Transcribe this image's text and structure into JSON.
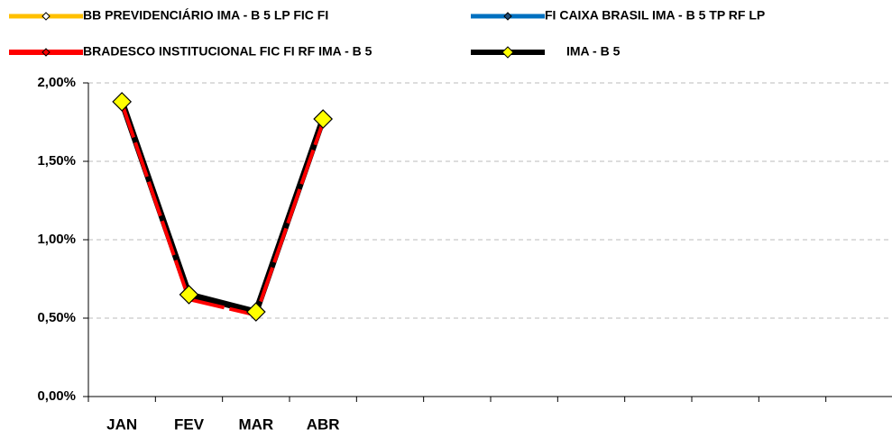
{
  "chart_data": {
    "type": "line",
    "categories": [
      "JAN",
      "FEV",
      "MAR",
      "ABR",
      null,
      null,
      null,
      null,
      null,
      null,
      null,
      null
    ],
    "series": [
      {
        "name": "BB PREVIDENCIÁRIO IMA - B 5 LP FIC FI",
        "color": "#ffc000",
        "values": [
          1.88,
          0.64,
          0.53,
          1.76,
          null,
          null,
          null,
          null,
          null,
          null,
          null,
          null
        ]
      },
      {
        "name": "FI CAIXA BRASIL IMA - B 5 TP RF LP",
        "color": "#0070c0",
        "values": [
          1.88,
          0.64,
          0.53,
          1.76,
          null,
          null,
          null,
          null,
          null,
          null,
          null,
          null
        ]
      },
      {
        "name": "BRADESCO INSTITUCIONAL FIC FI RF IMA - B 5",
        "color": "#ff0000",
        "values": [
          1.87,
          0.62,
          0.52,
          1.75,
          null,
          null,
          null,
          null,
          null,
          null,
          null,
          null
        ]
      },
      {
        "name": "IMA - B 5",
        "color": "#000000",
        "values": [
          1.88,
          0.65,
          0.54,
          1.77,
          null,
          null,
          null,
          null,
          null,
          null,
          null,
          null
        ]
      }
    ],
    "ylim": [
      0,
      2
    ],
    "yticks": [
      {
        "value": 0,
        "label": "0,00%"
      },
      {
        "value": 0.5,
        "label": "0,50%"
      },
      {
        "value": 1,
        "label": "1,00%"
      },
      {
        "value": 1.5,
        "label": "1,50%"
      },
      {
        "value": 2,
        "label": "2,00%"
      }
    ],
    "grid": true
  }
}
